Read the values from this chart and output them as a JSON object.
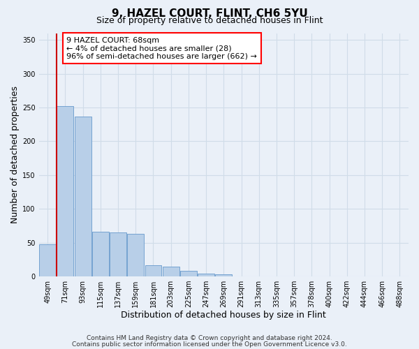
{
  "title": "9, HAZEL COURT, FLINT, CH6 5YU",
  "subtitle": "Size of property relative to detached houses in Flint",
  "xlabel": "Distribution of detached houses by size in Flint",
  "ylabel": "Number of detached properties",
  "bar_labels": [
    "49sqm",
    "71sqm",
    "93sqm",
    "115sqm",
    "137sqm",
    "159sqm",
    "181sqm",
    "203sqm",
    "225sqm",
    "247sqm",
    "269sqm",
    "291sqm",
    "313sqm",
    "335sqm",
    "357sqm",
    "378sqm",
    "400sqm",
    "422sqm",
    "444sqm",
    "466sqm",
    "488sqm"
  ],
  "bar_values": [
    48,
    252,
    237,
    66,
    65,
    63,
    16,
    14,
    8,
    4,
    3,
    0,
    0,
    0,
    0,
    0,
    0,
    0,
    0,
    0,
    0
  ],
  "bar_color": "#b8cfe8",
  "bar_edge_color": "#6699cc",
  "annotation_box_text": "9 HAZEL COURT: 68sqm\n← 4% of detached houses are smaller (28)\n96% of semi-detached houses are larger (662) →",
  "vline_color": "#cc0000",
  "ylim": [
    0,
    360
  ],
  "yticks": [
    0,
    50,
    100,
    150,
    200,
    250,
    300,
    350
  ],
  "footer_line1": "Contains HM Land Registry data © Crown copyright and database right 2024.",
  "footer_line2": "Contains public sector information licensed under the Open Government Licence v3.0.",
  "bg_color": "#eaf0f8",
  "grid_color": "#d0dce8",
  "title_fontsize": 11,
  "subtitle_fontsize": 9,
  "axis_label_fontsize": 9,
  "tick_fontsize": 7,
  "footer_fontsize": 6.5,
  "annotation_fontsize": 8
}
